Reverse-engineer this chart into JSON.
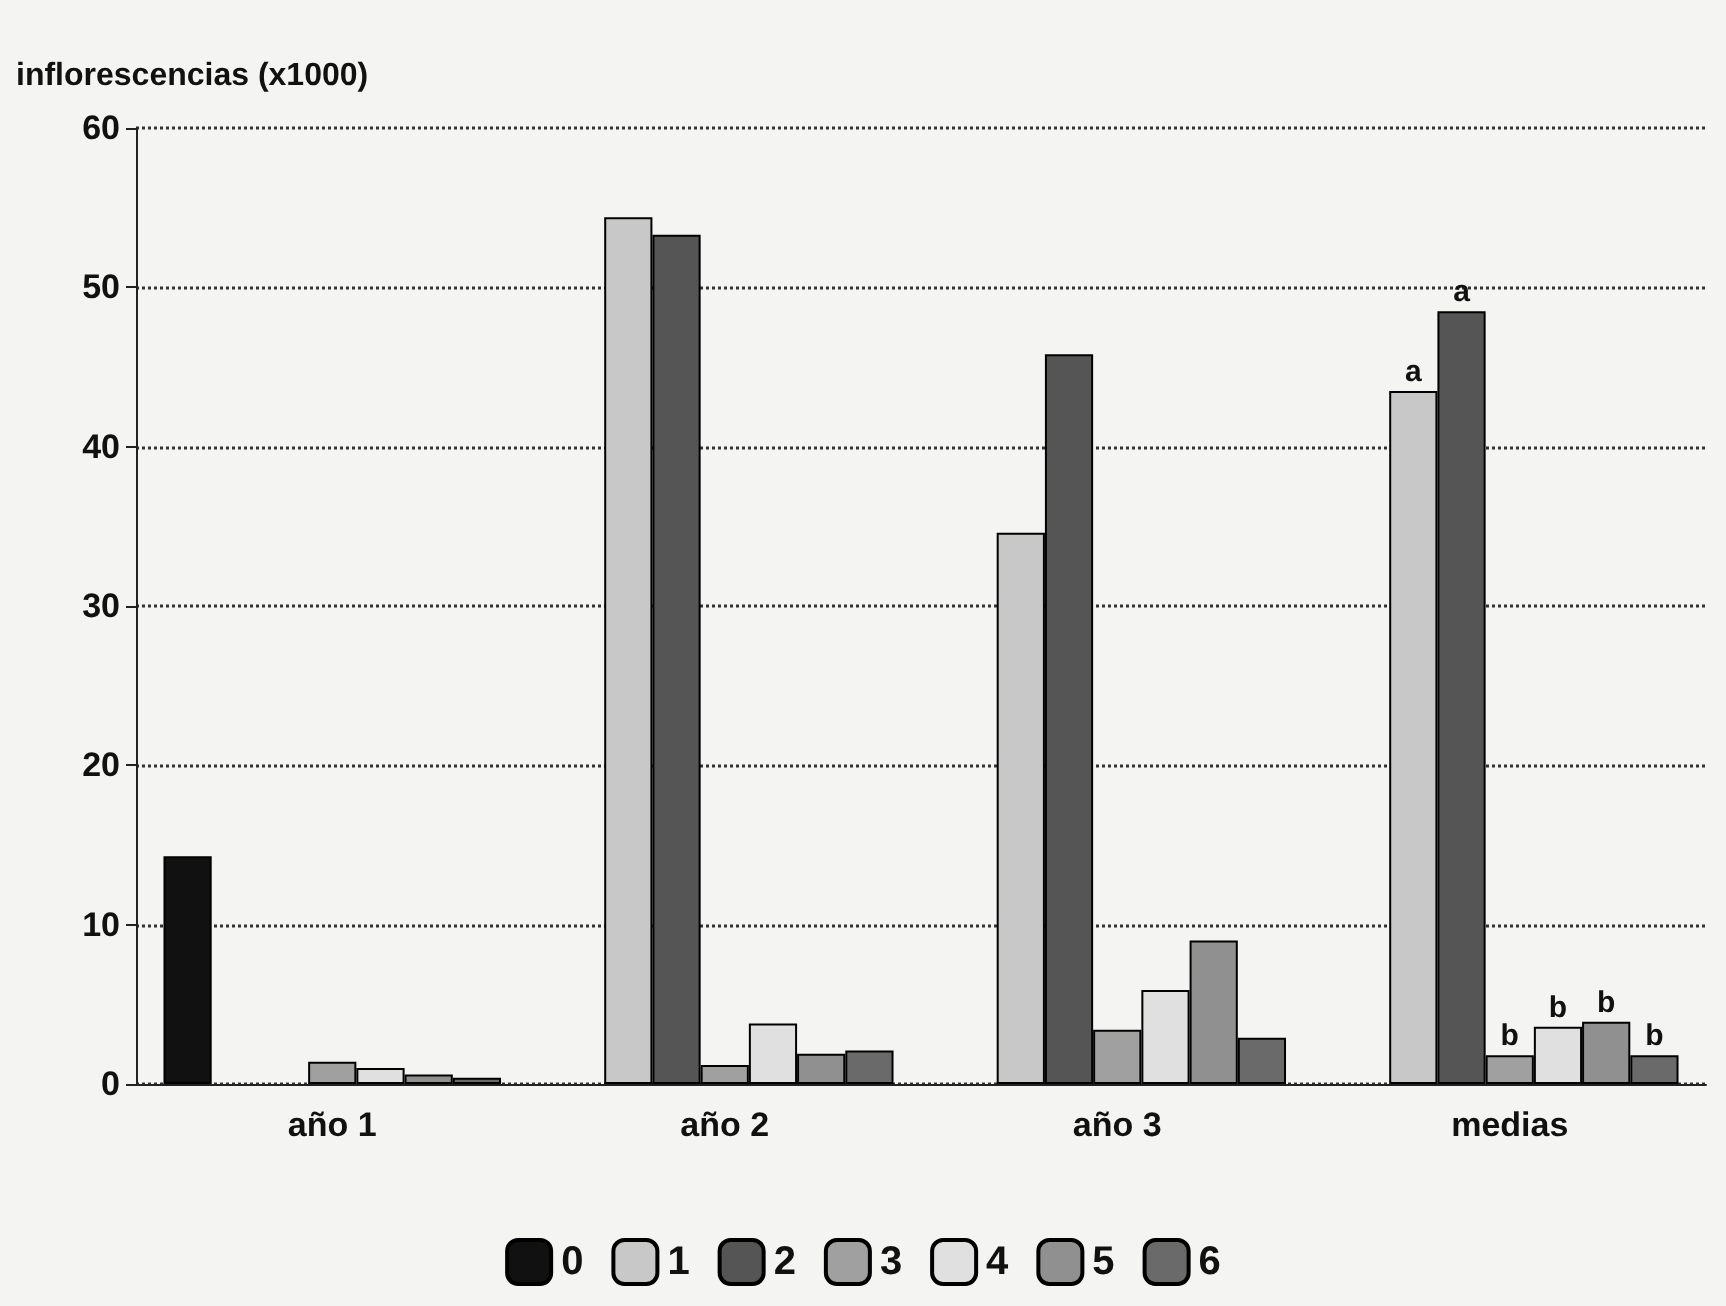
{
  "chart_data": {
    "type": "bar",
    "ylabel": "inflorescencias (x1000)",
    "categories": [
      "año 1",
      "año 2",
      "año 3",
      "medias"
    ],
    "series": [
      {
        "name": "0",
        "color": "#111111",
        "values": [
          14.3,
          null,
          null,
          null
        ]
      },
      {
        "name": "1",
        "color": "#c8c8c8",
        "values": [
          null,
          54.4,
          34.6,
          43.5
        ],
        "value_labels": [
          null,
          null,
          null,
          "a"
        ]
      },
      {
        "name": "2",
        "color": "#555555",
        "values": [
          null,
          53.3,
          45.8,
          48.5
        ],
        "value_labels": [
          null,
          null,
          null,
          "a"
        ]
      },
      {
        "name": "3",
        "color": "#a0a0a0",
        "values": [
          1.4,
          1.2,
          3.4,
          1.8
        ],
        "value_labels": [
          null,
          null,
          null,
          "b"
        ]
      },
      {
        "name": "4",
        "color": "#e0e0e0",
        "values": [
          1.0,
          3.8,
          5.9,
          3.6
        ],
        "value_labels": [
          null,
          null,
          null,
          "b"
        ]
      },
      {
        "name": "5",
        "color": "#909090",
        "values": [
          0.6,
          1.9,
          9.0,
          3.9
        ],
        "value_labels": [
          null,
          null,
          null,
          "b"
        ]
      },
      {
        "name": "6",
        "color": "#6a6a6a",
        "values": [
          0.4,
          2.1,
          2.9,
          1.8
        ],
        "value_labels": [
          null,
          null,
          null,
          "b"
        ]
      }
    ],
    "ylim": [
      0,
      60
    ],
    "yticks": [
      0,
      10,
      20,
      30,
      40,
      50,
      60
    ],
    "grid": "y",
    "legend": "bottom"
  }
}
